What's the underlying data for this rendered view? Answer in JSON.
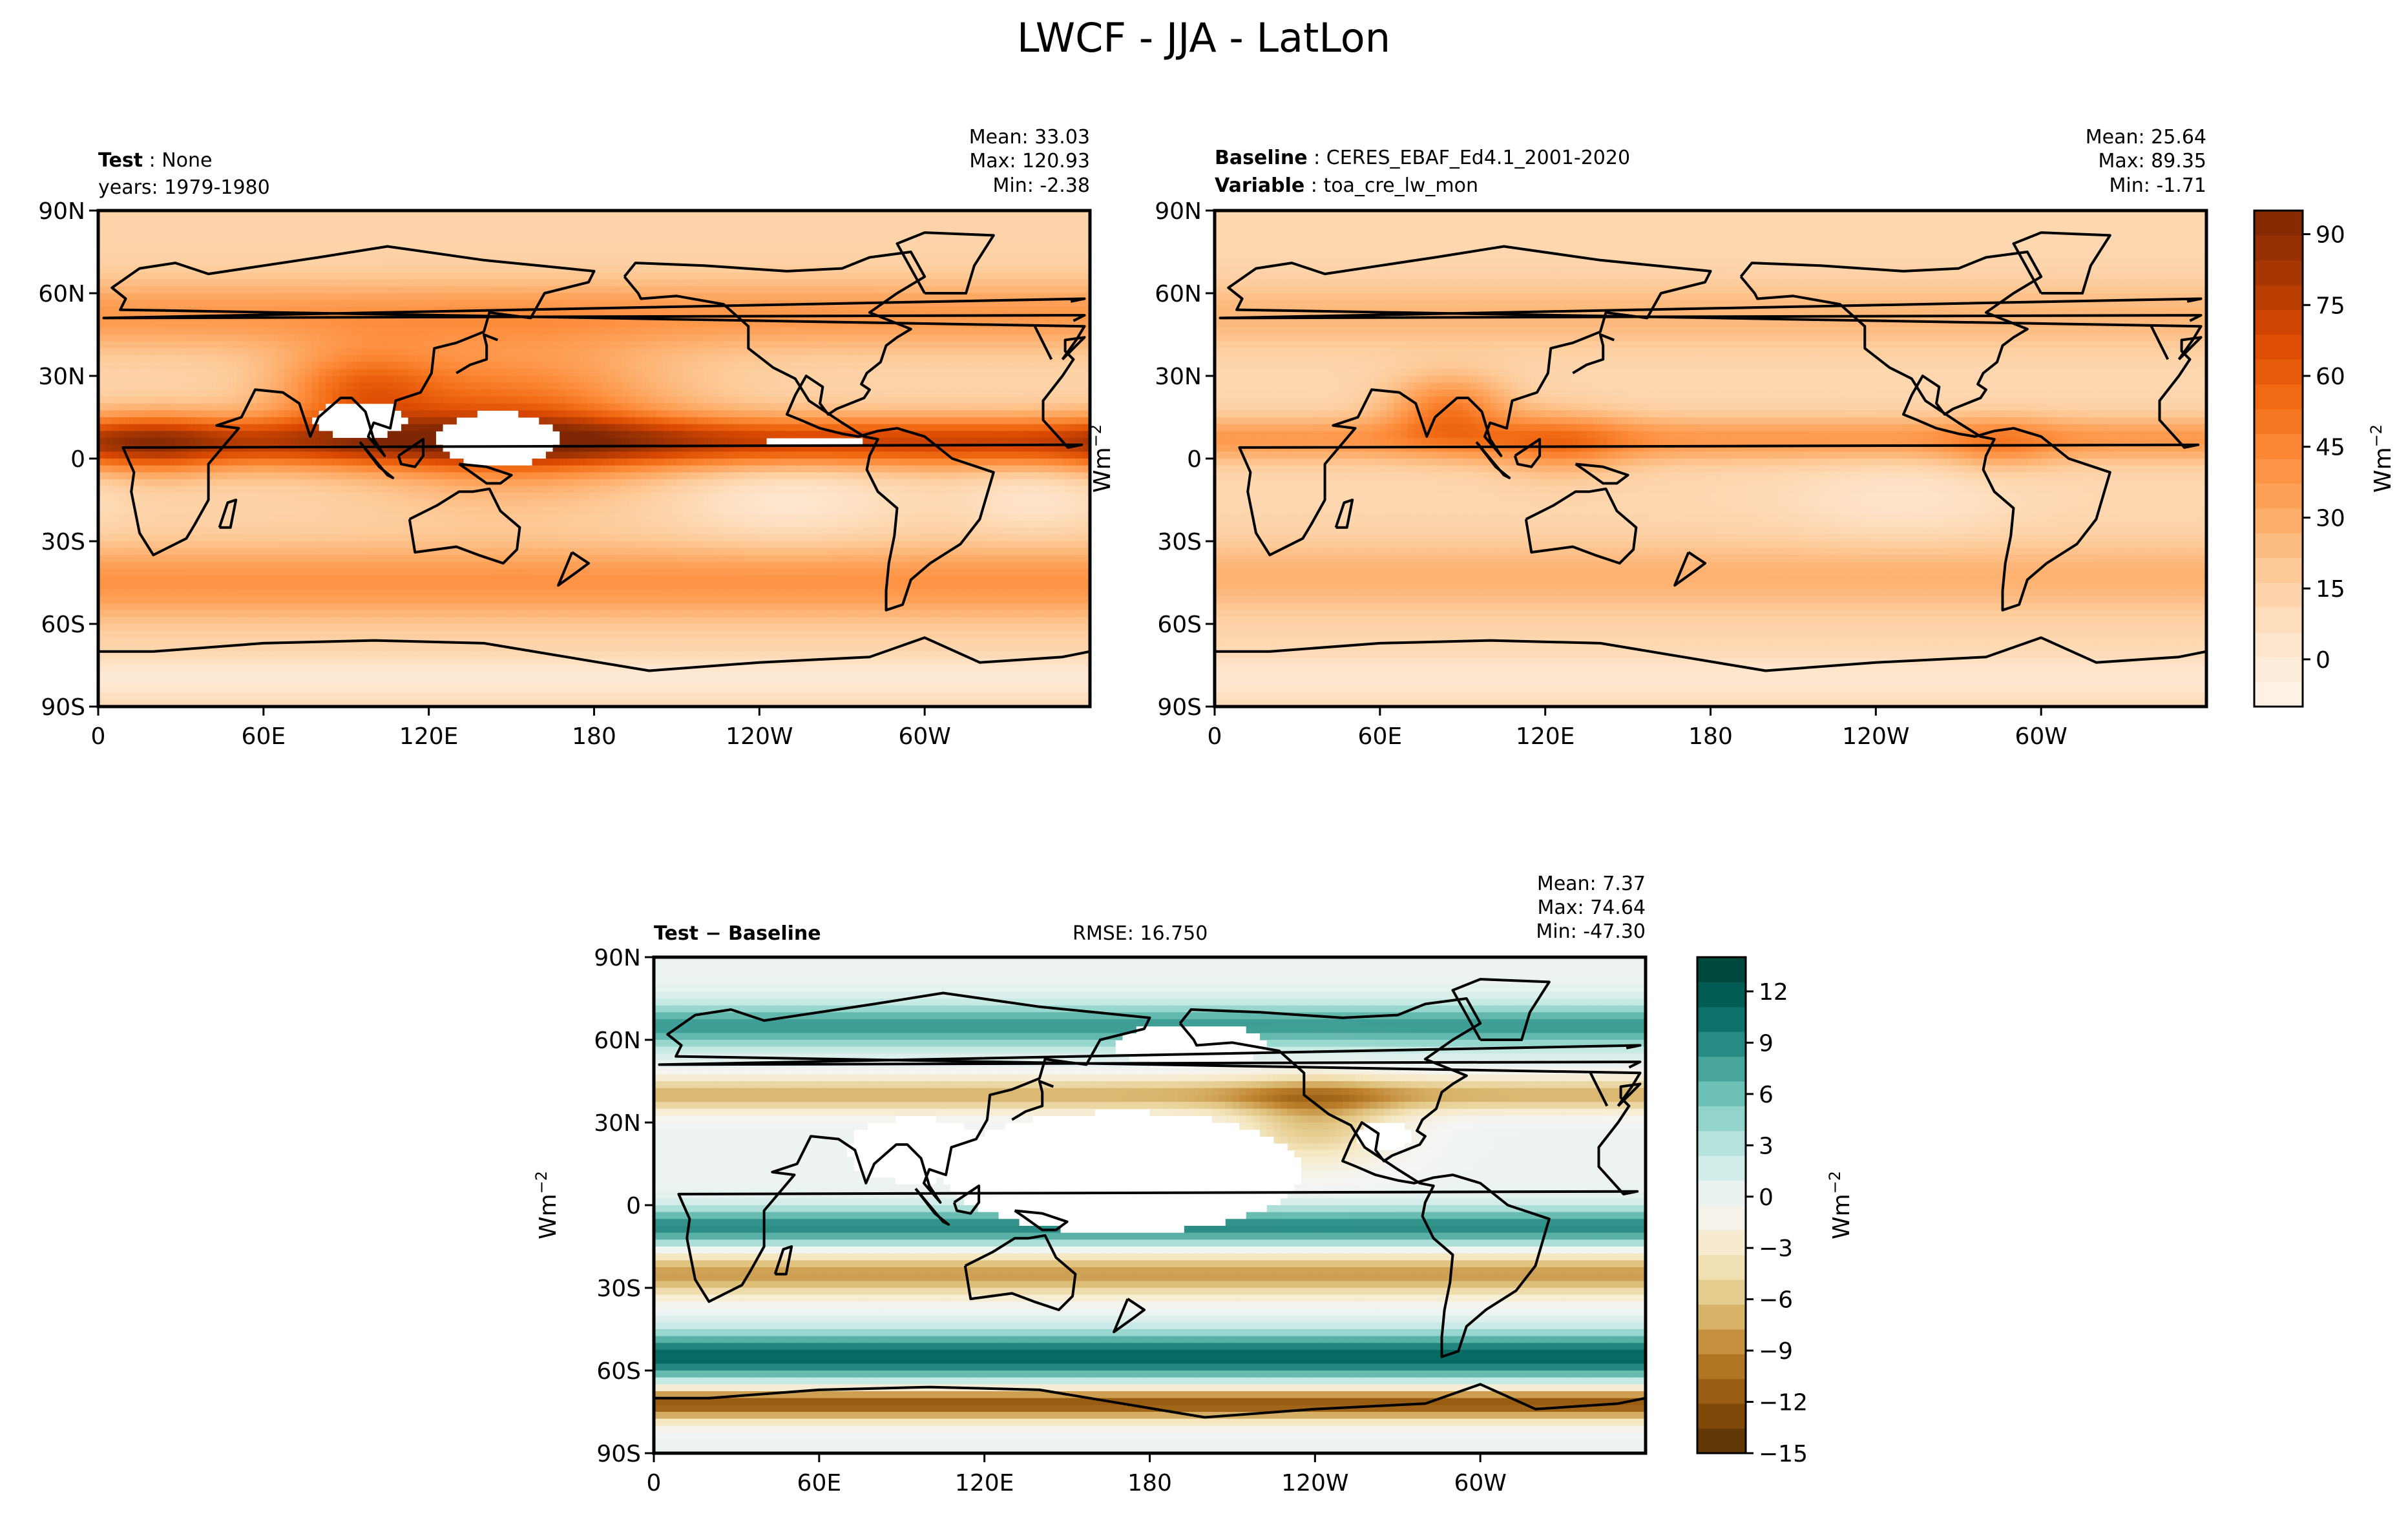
{
  "figure": {
    "title": "LWCF - JJA - LatLon"
  },
  "colors": {
    "seq": [
      "#fff5eb",
      "#fee6ce",
      "#fdd0a2",
      "#fdae6b",
      "#fd8d3c",
      "#f16913",
      "#d94801",
      "#a63603",
      "#7f2704"
    ],
    "div": [
      "#543005",
      "#8c510a",
      "#bf812d",
      "#dfc27d",
      "#f6e8c3",
      "#f5f5f5",
      "#c7eae5",
      "#80cdc1",
      "#35978f",
      "#01665e",
      "#003c30"
    ],
    "coast": "#000000"
  },
  "chart_data": [
    {
      "type": "heatmap",
      "panel": "test",
      "label_bold": "Test",
      "label_value": "None",
      "years_text": "years: 1979-1980",
      "stats": {
        "mean": "Mean: 33.03",
        "max": "Max: 120.93",
        "min": "Min: -2.38"
      },
      "x_ticks": [
        "0",
        "60E",
        "120E",
        "180",
        "120W",
        "60W"
      ],
      "y_ticks": [
        "90N",
        "60N",
        "30N",
        "0",
        "30S",
        "60S",
        "90S"
      ],
      "xlim": [
        0,
        360
      ],
      "ylim": [
        -90,
        90
      ],
      "colormap": "Oranges",
      "zlim": [
        -10,
        95
      ],
      "features": [
        {
          "kind": "base",
          "value": 14
        },
        {
          "kind": "band",
          "lat": 6,
          "width": 9,
          "value": 58
        },
        {
          "kind": "band",
          "lat": -45,
          "width": 13,
          "value": 26
        },
        {
          "kind": "band",
          "lat": 52,
          "width": 12,
          "value": 24
        },
        {
          "kind": "blob",
          "lon": 150,
          "lat": 15,
          "rlon": 55,
          "rlat": 25,
          "value": 40
        },
        {
          "kind": "blob",
          "lon": 95,
          "lat": 25,
          "rlon": 30,
          "rlat": 15,
          "value": 35
        },
        {
          "kind": "blob",
          "lon": 20,
          "lat": 5,
          "rlon": 25,
          "rlat": 12,
          "value": 20
        },
        {
          "kind": "blob",
          "lon": 250,
          "lat": -15,
          "rlon": 40,
          "rlat": 15,
          "value": -12
        },
        {
          "kind": "blob",
          "lon": 340,
          "lat": -15,
          "rlon": 25,
          "rlat": 12,
          "value": -10
        },
        {
          "kind": "band",
          "lat": -80,
          "width": 8,
          "value": -14
        }
      ],
      "masked": [
        {
          "lon": 95,
          "lat": 14,
          "rlon": 17,
          "rlat": 7
        },
        {
          "lon": 145,
          "lat": 7,
          "rlon": 22,
          "rlat": 10
        },
        {
          "lon": 260,
          "lat": 6,
          "rlon": 18,
          "rlat": 2
        }
      ]
    },
    {
      "type": "heatmap",
      "panel": "baseline",
      "label_bold": "Baseline",
      "label_value": "CERES_EBAF_Ed4.1_2001-2020",
      "variable_bold": "Variable",
      "variable_value": "toa_cre_lw_mon",
      "stats": {
        "mean": "Mean: 25.64",
        "max": "Max: 89.35",
        "min": "Min: -1.71"
      },
      "x_ticks": [
        "0",
        "60E",
        "120E",
        "180",
        "120W",
        "60W"
      ],
      "y_ticks": [
        "90N",
        "60N",
        "30N",
        "0",
        "30S",
        "60S",
        "90S"
      ],
      "xlim": [
        0,
        360
      ],
      "ylim": [
        -90,
        90
      ],
      "colormap": "Oranges",
      "zlim": [
        -10,
        95
      ],
      "colorbar": {
        "ticks": [
          0,
          15,
          30,
          45,
          60,
          75,
          90
        ],
        "tick_labels": [
          "0",
          "15",
          "30",
          "45",
          "60",
          "75",
          "90"
        ],
        "label": "Wm",
        "label_sup": "−2"
      },
      "features": [
        {
          "kind": "base",
          "value": 12
        },
        {
          "kind": "band",
          "lat": 7,
          "width": 8,
          "value": 26
        },
        {
          "kind": "band",
          "lat": -43,
          "width": 13,
          "value": 16
        },
        {
          "kind": "band",
          "lat": 52,
          "width": 12,
          "value": 14
        },
        {
          "kind": "blob",
          "lon": 85,
          "lat": 18,
          "rlon": 22,
          "rlat": 12,
          "value": 34
        },
        {
          "kind": "blob",
          "lon": 125,
          "lat": 5,
          "rlon": 25,
          "rlat": 12,
          "value": 20
        },
        {
          "kind": "blob",
          "lon": 285,
          "lat": 5,
          "rlon": 20,
          "rlat": 10,
          "value": 14
        },
        {
          "kind": "blob",
          "lon": 250,
          "lat": -15,
          "rlon": 40,
          "rlat": 15,
          "value": -8
        },
        {
          "kind": "band",
          "lat": -80,
          "width": 8,
          "value": -10
        }
      ],
      "masked": []
    },
    {
      "type": "heatmap",
      "panel": "difference",
      "label_bold": "Test − Baseline",
      "rmse_text": "RMSE: 16.750",
      "stats": {
        "mean": "Mean:  7.37",
        "max": "Max: 74.64",
        "min": "Min: -47.30"
      },
      "x_ticks": [
        "0",
        "60E",
        "120E",
        "180",
        "120W",
        "60W"
      ],
      "y_ticks": [
        "90N",
        "60N",
        "30N",
        "0",
        "30S",
        "60S",
        "90S"
      ],
      "xlim": [
        0,
        360
      ],
      "ylim": [
        -90,
        90
      ],
      "colormap": "BrBG",
      "zlim": [
        -15,
        14
      ],
      "ylabel": "Wm",
      "ylabel_sup": "−2",
      "colorbar": {
        "ticks": [
          12,
          9,
          6,
          3,
          0,
          -3,
          -6,
          -9,
          -12,
          -15
        ],
        "tick_labels": [
          "12",
          "9",
          "6",
          "3",
          "0",
          "−3",
          "−6",
          "−9",
          "−12",
          "−15"
        ],
        "label": "Wm",
        "label_sup": "−2"
      },
      "features": [
        {
          "kind": "base",
          "value": 0
        },
        {
          "kind": "band",
          "lat": 65,
          "width": 8,
          "value": 8
        },
        {
          "kind": "band",
          "lat": 40,
          "width": 6,
          "value": -7
        },
        {
          "kind": "band",
          "lat": -8,
          "width": 7,
          "value": 9
        },
        {
          "kind": "band",
          "lat": -25,
          "width": 8,
          "value": -8
        },
        {
          "kind": "band",
          "lat": -55,
          "width": 9,
          "value": 11
        },
        {
          "kind": "band",
          "lat": -72,
          "width": 6,
          "value": -12
        },
        {
          "kind": "blob",
          "lon": 240,
          "lat": 30,
          "rlon": 30,
          "rlat": 15,
          "value": -6
        }
      ],
      "masked": [
        {
          "lon": 170,
          "lat": 12,
          "rlon": 65,
          "rlat": 22
        },
        {
          "lon": 95,
          "lat": 20,
          "rlon": 25,
          "rlat": 12
        },
        {
          "lon": 265,
          "lat": 25,
          "rlon": 10,
          "rlat": 6
        },
        {
          "lon": 195,
          "lat": 58,
          "rlon": 28,
          "rlat": 8
        }
      ]
    }
  ]
}
